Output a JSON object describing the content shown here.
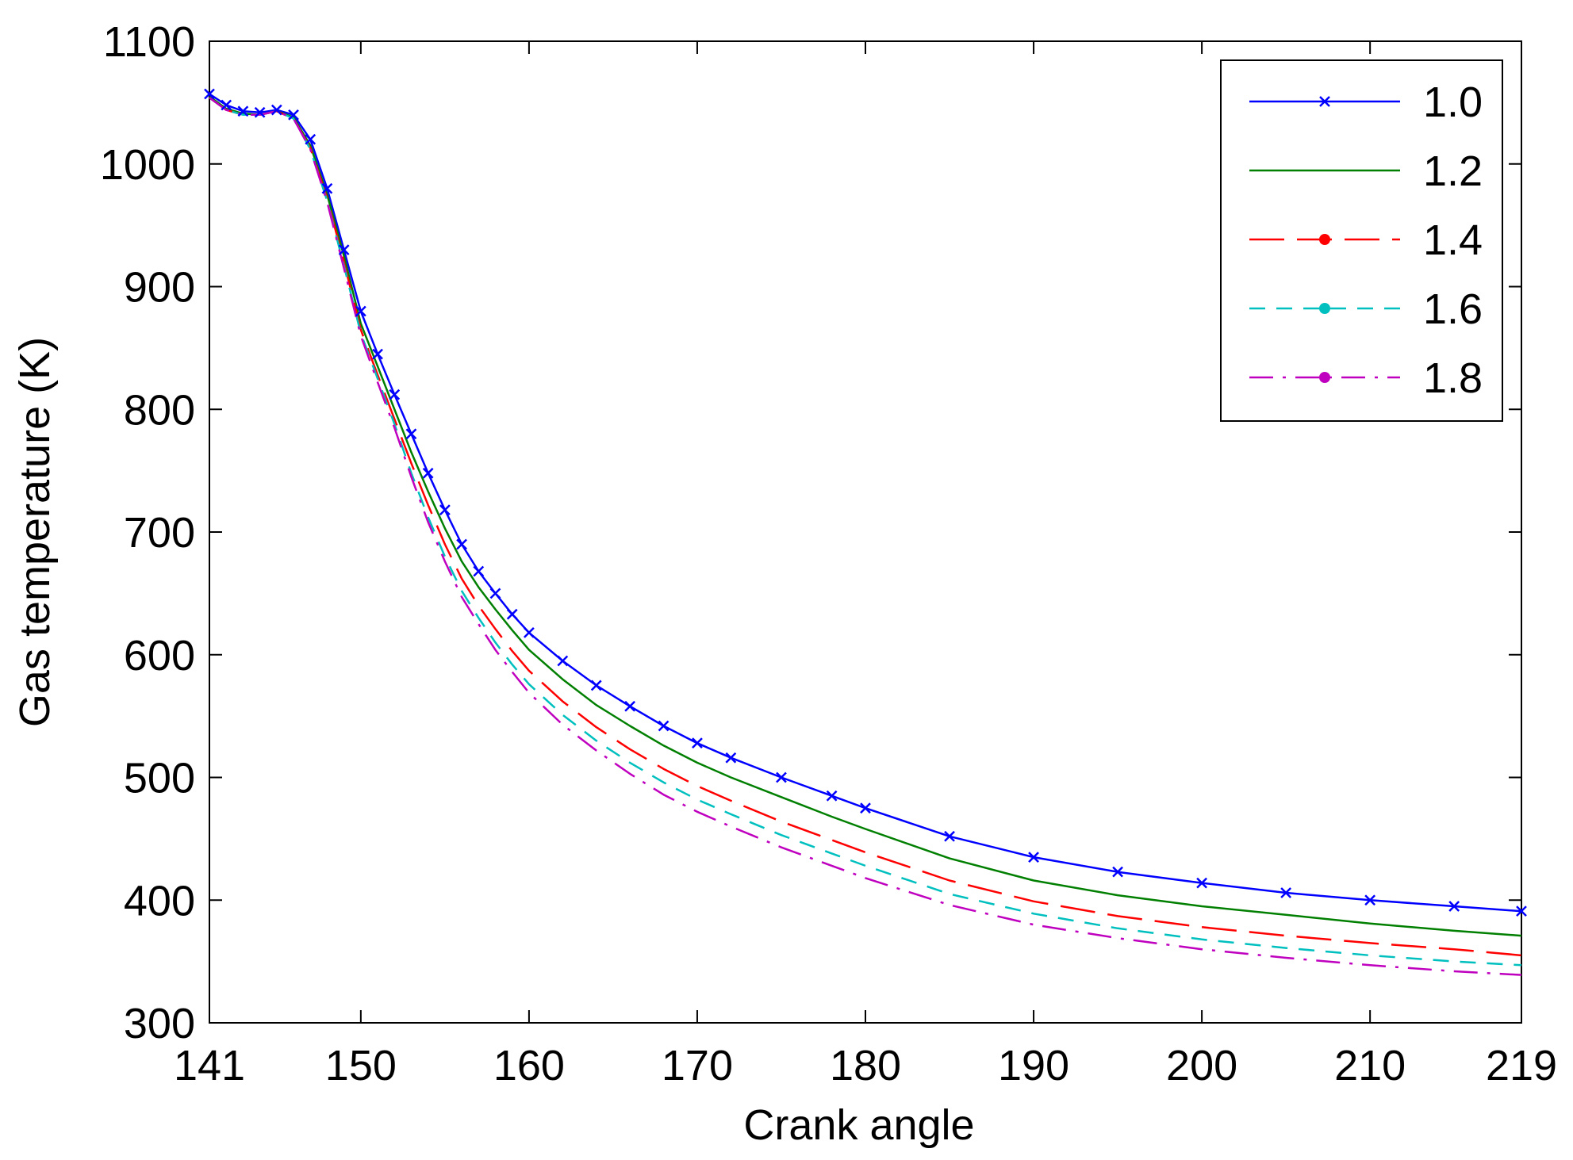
{
  "chart_data": {
    "type": "line",
    "xlabel": "Crank angle",
    "ylabel": "Gas temperature (K)",
    "xlim": [
      141,
      219
    ],
    "ylim": [
      300,
      1100
    ],
    "xticks": [
      141,
      150,
      160,
      170,
      180,
      190,
      200,
      210,
      219
    ],
    "yticks": [
      300,
      400,
      500,
      600,
      700,
      800,
      900,
      1000,
      1100
    ],
    "grid": false,
    "legend_position": "top-right",
    "x": [
      141,
      142,
      143,
      144,
      145,
      146,
      147,
      148,
      149,
      150,
      151,
      152,
      153,
      154,
      155,
      156,
      157,
      158,
      159,
      160,
      162,
      164,
      166,
      168,
      170,
      172,
      175,
      178,
      180,
      185,
      190,
      195,
      200,
      205,
      210,
      215,
      219
    ],
    "series": [
      {
        "name": "1.0",
        "color": "#0000ff",
        "dash": "solid",
        "marker": "x",
        "values": [
          1057,
          1048,
          1043,
          1042,
          1044,
          1040,
          1020,
          980,
          930,
          880,
          845,
          812,
          780,
          748,
          718,
          690,
          668,
          650,
          633,
          618,
          595,
          575,
          558,
          542,
          528,
          516,
          500,
          485,
          475,
          452,
          435,
          423,
          414,
          406,
          400,
          395,
          391
        ]
      },
      {
        "name": "1.2",
        "color": "#007f00",
        "dash": "solid",
        "marker": "none",
        "values": [
          1055,
          1045,
          1041,
          1040,
          1043,
          1038,
          1015,
          975,
          925,
          870,
          835,
          800,
          765,
          733,
          703,
          676,
          655,
          637,
          620,
          604,
          580,
          559,
          542,
          526,
          512,
          500,
          484,
          468,
          458,
          434,
          416,
          404,
          395,
          388,
          381,
          375,
          371
        ]
      },
      {
        "name": "1.4",
        "color": "#ff0000",
        "dash": "longdash",
        "marker": "o",
        "values": [
          1054,
          1044,
          1040,
          1040,
          1043,
          1037,
          1013,
          972,
          920,
          865,
          828,
          792,
          756,
          722,
          690,
          662,
          640,
          621,
          603,
          587,
          562,
          541,
          523,
          507,
          493,
          481,
          464,
          449,
          439,
          416,
          399,
          387,
          378,
          371,
          365,
          360,
          355
        ]
      },
      {
        "name": "1.6",
        "color": "#00bfbf",
        "dash": "dash",
        "marker": "o",
        "values": [
          1054,
          1044,
          1040,
          1040,
          1043,
          1037,
          1012,
          970,
          917,
          862,
          825,
          788,
          748,
          712,
          680,
          652,
          630,
          610,
          592,
          576,
          551,
          530,
          512,
          496,
          482,
          470,
          453,
          438,
          428,
          405,
          389,
          377,
          368,
          361,
          355,
          350,
          347
        ]
      },
      {
        "name": "1.8",
        "color": "#bf00bf",
        "dash": "dashdot",
        "marker": "o",
        "values": [
          1054,
          1044,
          1040,
          1040,
          1043,
          1037,
          1012,
          969,
          915,
          860,
          822,
          785,
          745,
          708,
          676,
          647,
          625,
          604,
          586,
          569,
          543,
          522,
          503,
          486,
          472,
          460,
          443,
          428,
          418,
          396,
          380,
          369,
          360,
          353,
          347,
          342,
          339
        ]
      }
    ]
  }
}
